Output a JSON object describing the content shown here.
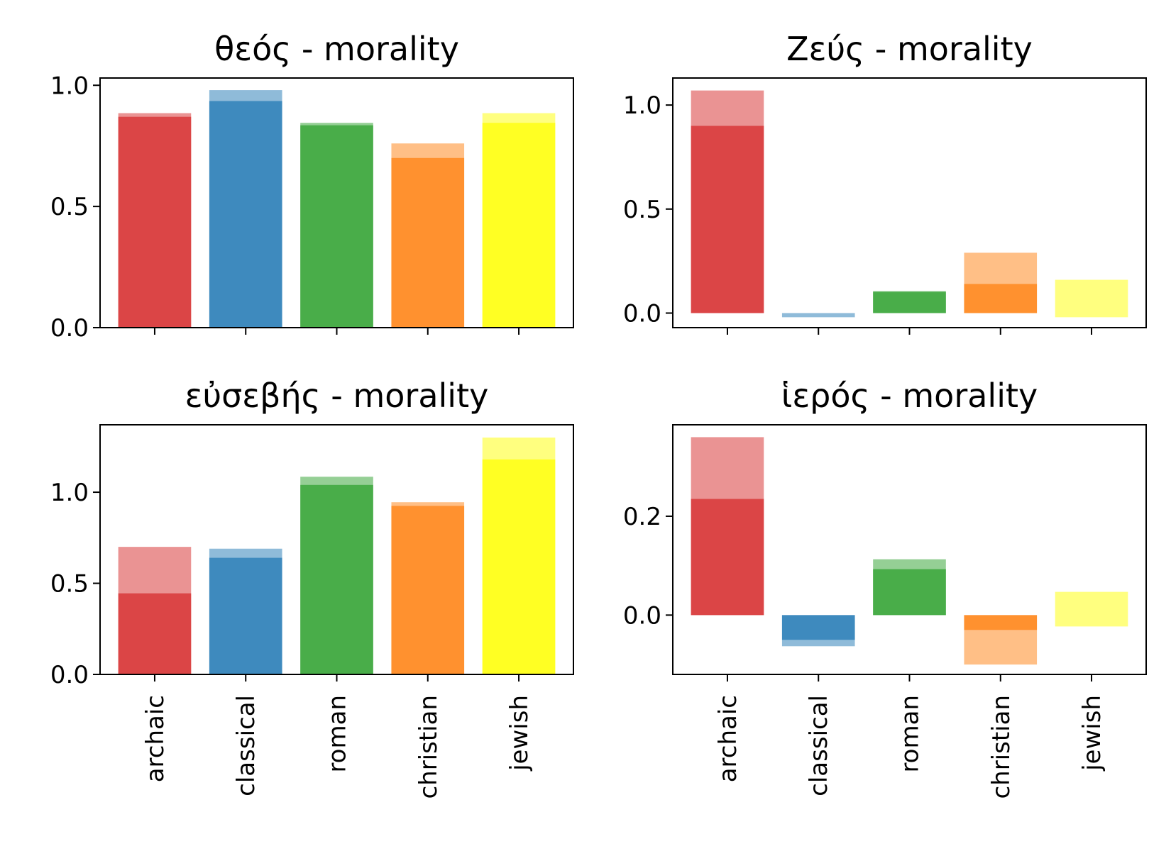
{
  "chart_data": [
    {
      "type": "bar",
      "title": "θεός - morality",
      "categories": [
        "archaic",
        "classical",
        "roman",
        "christian",
        "jewish"
      ],
      "ylim": [
        0,
        1.03
      ],
      "yticks": [
        0.0,
        0.5,
        1.0
      ],
      "ytick_labels": [
        "0.0",
        "0.5, ",
        "1.0"
      ],
      "series": [
        {
          "values": [
            0.87,
            0.935,
            0.835,
            0.7,
            0.845
          ]
        },
        {
          "values": [
            0.885,
            0.98,
            0.845,
            0.76,
            0.885
          ]
        }
      ],
      "show_category_labels": false
    },
    {
      "type": "bar",
      "title": "Ζεύς - morality",
      "categories": [
        "archaic",
        "classical",
        "roman",
        "christian",
        "jewish"
      ],
      "ylim": [
        -0.07,
        1.13
      ],
      "yticks": [
        0.0,
        0.5,
        1.0
      ],
      "ytick_labels": [
        "0.0",
        "0.5",
        "1.0"
      ],
      "series": [
        {
          "values": [
            0.9,
            0.0,
            0.105,
            0.14,
            0.0
          ]
        },
        {
          "values": [
            1.07,
            -0.02,
            0.1,
            0.29,
            0.16
          ],
          "base": [
            0,
            0,
            0,
            0,
            -0.02
          ]
        }
      ],
      "show_category_labels": false
    },
    {
      "type": "bar",
      "title": "εὐσεβής - morality",
      "categories": [
        "archaic",
        "classical",
        "roman",
        "christian",
        "jewish"
      ],
      "ylim": [
        0,
        1.37
      ],
      "yticks": [
        0.0,
        0.5,
        1.0
      ],
      "ytick_labels": [
        "0.0",
        "0.5",
        "1.0"
      ],
      "series": [
        {
          "values": [
            0.445,
            0.64,
            1.04,
            0.925,
            1.18
          ]
        },
        {
          "values": [
            0.7,
            0.69,
            1.085,
            0.945,
            1.3
          ]
        }
      ],
      "show_category_labels": true
    },
    {
      "type": "bar",
      "title": "ἱερός - morality",
      "categories": [
        "archaic",
        "classical",
        "roman",
        "christian",
        "jewish"
      ],
      "ylim": [
        -0.12,
        0.385
      ],
      "yticks": [
        0.0,
        0.2
      ],
      "ytick_labels": [
        "0.0",
        "0.2"
      ],
      "series": [
        {
          "values": [
            0.235,
            -0.05,
            0.093,
            -0.03,
            0.0
          ]
        },
        {
          "values": [
            0.36,
            -0.063,
            0.113,
            -0.1,
            0.047
          ],
          "base": [
            0,
            0,
            0,
            0,
            -0.023
          ]
        }
      ],
      "show_category_labels": true
    }
  ],
  "colors": [
    "#d62728",
    "#1f77b4",
    "#2ca02c",
    "#ff7f0e",
    "#ffff00"
  ]
}
